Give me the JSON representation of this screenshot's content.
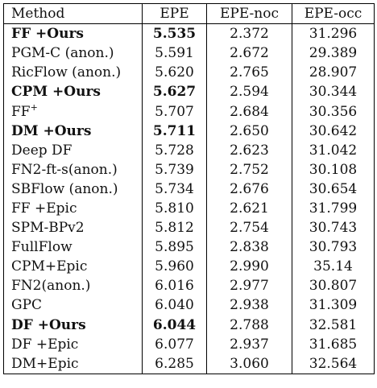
{
  "table": {
    "headers": [
      "Method",
      "EPE",
      "EPE-noc",
      "EPE-occ"
    ],
    "rows": [
      {
        "method": "FF +Ours",
        "sup": "",
        "epe": "5.535",
        "noc": "2.372",
        "occ": "31.296",
        "bold": true
      },
      {
        "method": "PGM-C (anon.)",
        "sup": "",
        "epe": "5.591",
        "noc": "2.672",
        "occ": "29.389",
        "bold": false
      },
      {
        "method": "RicFlow (anon.)",
        "sup": "",
        "epe": "5.620",
        "noc": "2.765",
        "occ": "28.907",
        "bold": false
      },
      {
        "method": "CPM +Ours",
        "sup": "",
        "epe": "5.627",
        "noc": "2.594",
        "occ": "30.344",
        "bold": true
      },
      {
        "method": "FF",
        "sup": "+",
        "epe": "5.707",
        "noc": "2.684",
        "occ": "30.356",
        "bold": false
      },
      {
        "method": "DM +Ours",
        "sup": "",
        "epe": "5.711",
        "noc": "2.650",
        "occ": "30.642",
        "bold": true
      },
      {
        "method": "Deep DF",
        "sup": "",
        "epe": "5.728",
        "noc": "2.623",
        "occ": "31.042",
        "bold": false
      },
      {
        "method": "FN2-ft-s(anon.)",
        "sup": "",
        "epe": "5.739",
        "noc": "2.752",
        "occ": "30.108",
        "bold": false
      },
      {
        "method": "SBFlow (anon.)",
        "sup": "",
        "epe": "5.734",
        "noc": "2.676",
        "occ": "30.654",
        "bold": false
      },
      {
        "method": "FF +Epic",
        "sup": "",
        "epe": "5.810",
        "noc": "2.621",
        "occ": "31.799",
        "bold": false
      },
      {
        "method": "SPM-BPv2",
        "sup": "",
        "epe": "5.812",
        "noc": "2.754",
        "occ": "30.743",
        "bold": false
      },
      {
        "method": "FullFlow",
        "sup": "",
        "epe": "5.895",
        "noc": "2.838",
        "occ": "30.793",
        "bold": false
      },
      {
        "method": "CPM+Epic",
        "sup": "",
        "epe": "5.960",
        "noc": "2.990",
        "occ": "35.14",
        "bold": false
      },
      {
        "method": "FN2(anon.)",
        "sup": "",
        "epe": "6.016",
        "noc": "2.977",
        "occ": "30.807",
        "bold": false
      },
      {
        "method": "GPC",
        "sup": "",
        "epe": "6.040",
        "noc": "2.938",
        "occ": "31.309",
        "bold": false
      },
      {
        "method": "DF +Ours",
        "sup": "",
        "epe": "6.044",
        "noc": "2.788",
        "occ": "32.581",
        "bold": true
      },
      {
        "method": "DF +Epic",
        "sup": "",
        "epe": "6.077",
        "noc": "2.937",
        "occ": "31.685",
        "bold": false
      },
      {
        "method": "DM+Epic",
        "sup": "",
        "epe": "6.285",
        "noc": "3.060",
        "occ": "32.564",
        "bold": false
      }
    ]
  }
}
